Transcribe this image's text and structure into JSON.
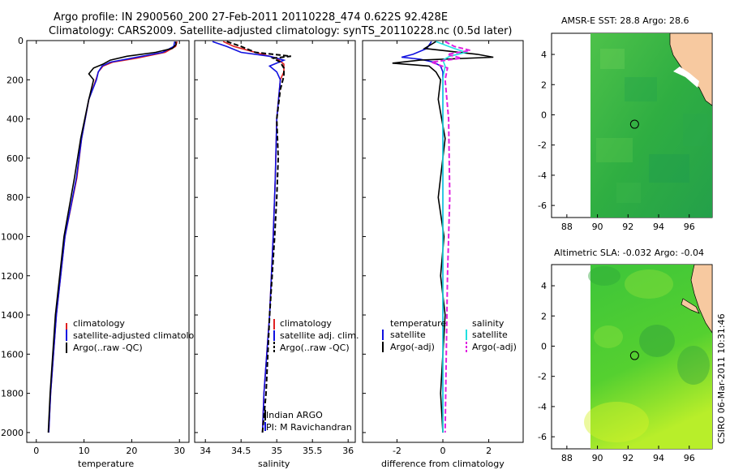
{
  "header": {
    "line1": "Argo profile: IN 2900560_200 27-Feb-2011 20110228_474 0.622S 92.428E",
    "line2": "Climatology: CARS2009. Satellite-adjusted climatology: synTS_20110228.nc (0.5d later)"
  },
  "footer": {
    "stamp": "CSIRO 06-Mar-2011 10:31:46",
    "note1": "Indian ARGO",
    "note2": "PI: M Ravichandran"
  },
  "colors": {
    "red": "#e02020",
    "blue": "#1010e0",
    "black": "#000000",
    "cyan": "#20e0e0",
    "magenta": "#e020e0",
    "land": "#f7c9a0",
    "noData": "#ffffff"
  },
  "chart_data": [
    {
      "id": "temperature",
      "type": "line",
      "xlabel": "temperature",
      "ylabel": "",
      "xlim": [
        -2,
        32
      ],
      "ylim": [
        2050,
        0
      ],
      "xticks": [
        "0",
        "10",
        "20",
        "30"
      ],
      "xtick_values": [
        0,
        10,
        20,
        30
      ],
      "yticks": [
        "0",
        "200",
        "400",
        "600",
        "800",
        "1000",
        "1200",
        "1400",
        "1600",
        "1800",
        "2000"
      ],
      "ytick_values": [
        0,
        200,
        400,
        600,
        800,
        1000,
        1200,
        1400,
        1600,
        1800,
        2000
      ],
      "legend": [
        "climatology",
        "satellite-adjusted climatology",
        "Argo(..raw -QC)"
      ],
      "series": [
        {
          "name": "climatology",
          "color": "red",
          "dash": false,
          "depth": [
            5,
            30,
            60,
            90,
            110,
            130,
            160,
            200,
            300,
            500,
            700,
            1000,
            1400,
            1800,
            2000
          ],
          "values": [
            29.5,
            29.2,
            27,
            21,
            16,
            14,
            13,
            12.5,
            11,
            9.5,
            8.5,
            6,
            4.2,
            3,
            2.6
          ]
        },
        {
          "name": "satellite-adjusted climatology",
          "color": "blue",
          "dash": false,
          "depth": [
            5,
            30,
            60,
            90,
            110,
            130,
            160,
            200,
            300,
            500,
            700,
            1000,
            1400,
            1800,
            2000
          ],
          "values": [
            29,
            28.8,
            26.5,
            20,
            15.5,
            13.8,
            13,
            12.6,
            11,
            9.5,
            8.4,
            6,
            4.2,
            3,
            2.6
          ]
        },
        {
          "name": "Argo(..raw -QC)",
          "color": "black",
          "dash": false,
          "depth": [
            5,
            20,
            40,
            60,
            80,
            100,
            120,
            140,
            170,
            200,
            300,
            500,
            700,
            1000,
            1400,
            1800,
            2000
          ],
          "values": [
            29.2,
            29.3,
            28.5,
            25,
            19,
            15.5,
            14,
            12,
            11,
            12,
            11,
            9.3,
            8,
            5.8,
            4,
            2.9,
            2.5
          ]
        }
      ]
    },
    {
      "id": "salinity",
      "type": "line",
      "xlabel": "salinity",
      "ylabel": "",
      "xlim": [
        33.85,
        36.1
      ],
      "ylim": [
        2050,
        0
      ],
      "xticks": [
        "34",
        "34.5",
        "35",
        "35.5",
        "36"
      ],
      "xtick_values": [
        34,
        34.5,
        35,
        35.5,
        36
      ],
      "legend": [
        "climatology",
        "satellite adj. clim.",
        "Argo(..raw -QC)"
      ],
      "series": [
        {
          "name": "climatology",
          "color": "red",
          "dash": false,
          "depth": [
            5,
            30,
            60,
            90,
            120,
            160,
            200,
            400,
            700,
            1000,
            1400,
            1800,
            2000
          ],
          "values": [
            34.25,
            34.4,
            34.7,
            35,
            35.1,
            35.1,
            35.05,
            35,
            34.98,
            34.95,
            34.9,
            34.82,
            34.8
          ]
        },
        {
          "name": "satellite adj. clim.",
          "color": "blue",
          "dash": false,
          "depth": [
            5,
            30,
            60,
            80,
            100,
            130,
            160,
            200,
            400,
            700,
            1000,
            1400,
            1800,
            2000
          ],
          "values": [
            34.1,
            34.3,
            34.5,
            34.9,
            35.1,
            34.9,
            35.0,
            35.05,
            35.0,
            34.98,
            34.95,
            34.9,
            34.82,
            34.8
          ]
        },
        {
          "name": "Argo(..raw -QC)",
          "color": "black",
          "dash": true,
          "depth": [
            5,
            30,
            60,
            80,
            90,
            110,
            140,
            180,
            250,
            400,
            600,
            800,
            1000,
            1400,
            1800,
            2000
          ],
          "values": [
            34.3,
            34.5,
            34.7,
            35.2,
            34.95,
            35.05,
            35.1,
            35.1,
            35.05,
            35.0,
            35.02,
            35.0,
            34.97,
            34.9,
            34.85,
            34.8
          ]
        }
      ]
    },
    {
      "id": "difference",
      "type": "line",
      "xlabel": "difference from climatology",
      "ylabel": "",
      "xlim": [
        -3.5,
        3.5
      ],
      "ylim": [
        2050,
        0
      ],
      "xticks": [
        "-2",
        "0",
        "2"
      ],
      "xtick_values": [
        -2,
        0,
        2
      ],
      "legend_left_title": "temperature",
      "legend_right_title": "salinity",
      "legend": [
        "satellite",
        "Argo(-adj)",
        "satellite",
        "Argo(-adj)"
      ],
      "series": [
        {
          "name": "temperature satellite",
          "color": "blue",
          "dash": false,
          "depth": [
            5,
            40,
            70,
            85,
            95,
            110,
            130,
            160,
            200,
            400,
            800,
            1200,
            1600,
            2000
          ],
          "values": [
            -0.5,
            -0.7,
            -1.3,
            -1.8,
            -1.0,
            -0.4,
            -0.1,
            0,
            0,
            0,
            0,
            0,
            0,
            0
          ]
        },
        {
          "name": "temperature Argo(-adj)",
          "color": "black",
          "dash": false,
          "depth": [
            5,
            40,
            70,
            85,
            100,
            115,
            130,
            160,
            200,
            300,
            500,
            800,
            1000,
            1200,
            1400,
            1600,
            1800,
            2000
          ],
          "values": [
            -0.3,
            -0.8,
            1.5,
            2.2,
            -1.0,
            -2.2,
            -0.6,
            -0.3,
            -0.1,
            -0.2,
            0.1,
            -0.2,
            0.05,
            -0.1,
            0.1,
            0.0,
            -0.1,
            0.0
          ]
        },
        {
          "name": "salinity satellite",
          "color": "cyan",
          "dash": false,
          "depth": [
            5,
            40,
            60,
            80,
            100,
            130,
            160,
            200,
            400,
            800,
            1200,
            1600,
            2000
          ],
          "values": [
            -0.3,
            0.5,
            1.0,
            0.3,
            0.0,
            0.1,
            0.05,
            0,
            0,
            0,
            0,
            0,
            0
          ]
        },
        {
          "name": "salinity Argo(-adj)",
          "color": "magenta",
          "dash": true,
          "depth": [
            5,
            30,
            50,
            70,
            90,
            110,
            140,
            200,
            400,
            800,
            1200,
            1600,
            2000
          ],
          "values": [
            0.1,
            0.5,
            1.2,
            0.2,
            0.8,
            -0.5,
            0.2,
            0.1,
            0.25,
            0.3,
            0.2,
            0.15,
            0.1
          ]
        }
      ]
    },
    {
      "id": "sst-map",
      "type": "heatmap",
      "title": "AMSR-E SST: 28.8 Argo: 28.6",
      "xlim": [
        87,
        97.5
      ],
      "ylim": [
        -6.8,
        5.4
      ],
      "xticks": [
        "88",
        "90",
        "92",
        "94",
        "96"
      ],
      "xtick_values": [
        88,
        90,
        92,
        94,
        96
      ],
      "yticks": [
        "4",
        "2",
        "0",
        "-2",
        "-4",
        "-6"
      ],
      "ytick_values": [
        4,
        2,
        0,
        -2,
        -4,
        -6
      ],
      "no_data_lon_max": 90,
      "argo_location": {
        "lon": 92.428,
        "lat": -0.622
      }
    },
    {
      "id": "sla-map",
      "type": "heatmap",
      "title": "Altimetric SLA: -0.032 Argo: -0.04",
      "xlim": [
        87,
        97.5
      ],
      "ylim": [
        -6.8,
        5.4
      ],
      "xticks": [
        "88",
        "90",
        "92",
        "94",
        "96"
      ],
      "xtick_values": [
        88,
        90,
        92,
        94,
        96
      ],
      "yticks": [
        "4",
        "2",
        "0",
        "-2",
        "-4",
        "-6"
      ],
      "ytick_values": [
        4,
        2,
        0,
        -2,
        -4,
        -6
      ],
      "no_data_lon_max": 90,
      "argo_location": {
        "lon": 92.428,
        "lat": -0.622
      }
    }
  ]
}
